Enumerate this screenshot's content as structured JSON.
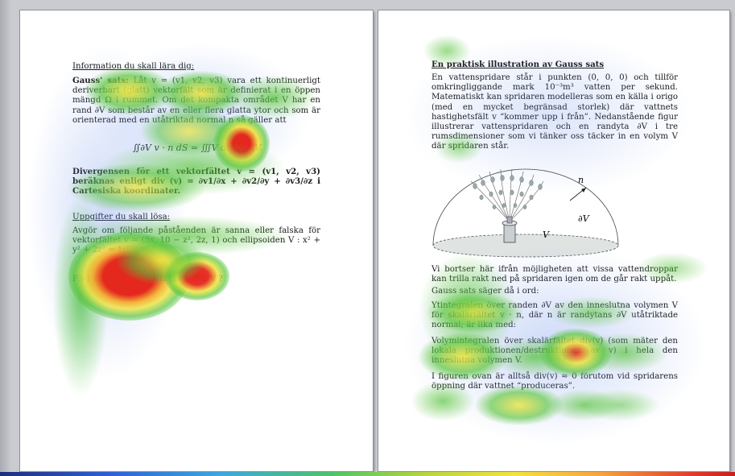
{
  "left_page": {
    "heading1": "Information du skall lära dig:",
    "para1_lead": "Gauss' sats:",
    "para1": " Låt v = (v1, v2, v3) vara ett kontinuerligt deriverbart (glatt) vektorfält som är definierat i en öppen mängd Ω i rummet. Om det kompakta området V har en rand ∂V som består av en eller flera glatta ytor och som är orienterad med en utåtriktad normal n så gäller att",
    "formula1": "∬∂V v · n dS = ∭V div(v) dV.",
    "para2": "Divergensen för ett vektorfältet v = (v1, v2, v3) beräknas enligt div (v) = ∂v1/∂x + ∂v2/∂y + ∂v3/∂z i Cartesiska koordinater.",
    "heading2": "Uppgifter du skall lösa:",
    "para3": "Avgör om följande påståenden är sanna eller falska för vektorfältet v = (3x, 10 − z², 2z, 1) och ellipsoiden V : x² + y² + 2z² = 1:",
    "statement": "P3-1 div(v) > 0 för alla (x, y, z) ∈ V ?"
  },
  "right_page": {
    "heading": "En praktisk illustration av Gauss sats",
    "para1": "En vattenspridare står i punkten (0, 0, 0) och tillför omkringliggande mark 10⁻³m³ vatten per sekund. Matematiskt kan spridaren modelleras som en källa i origo (med en mycket begränsad storlek) där vattnets hastighetsfält v “kommer upp i från”. Nedanstående figur illustrerar vattenspridaren och en randyta ∂V i tre rumsdimensioner som vi tänker oss täcker in en volym V där spridaren står.",
    "fig_label_n": "n",
    "fig_label_dV": "∂V",
    "fig_label_V": "V",
    "para2": "Vi bortser här ifrån möjligheten att vissa vattendroppar kan trilla rakt ned på spridaren igen om de går rakt uppåt.",
    "para3": "Gauss sats säger då i ord:",
    "para4": "Ytintegralen över randen ∂V av den inneslutna volymen V för skalärfältet v · n, där n är randytans ∂V utåtriktade normal; är lika med:",
    "para5": "Volymintegralen över skalärfältet div(v) (som mäter den lokala produktionen/destruktionen av v) i hela den inneslutna volymen V.",
    "para6": "I figuren ovan är alltså div(v) ≈ 0 förutom vid spridarens öppning där vattnet “produceras”."
  },
  "colors": {
    "background": "#c9cbd0",
    "page": "#ffffff",
    "heat_low": "#3a8fd8",
    "heat_mid": "#58c43c",
    "heat_high": "#f2e83a",
    "heat_peak": "#e8281e"
  }
}
